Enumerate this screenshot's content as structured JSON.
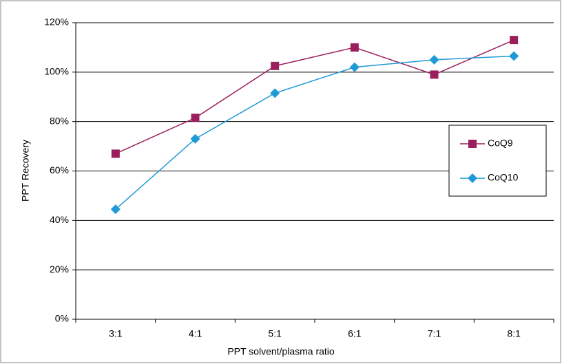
{
  "chart_data": {
    "type": "line",
    "x_label": "PPT solvent/plasma ratio",
    "y_label": "PPT Recovery",
    "categories": [
      "3:1",
      "4:1",
      "5:1",
      "6:1",
      "7:1",
      "8:1"
    ],
    "series": [
      {
        "name": "CoQ9",
        "color": "#9b1f5c",
        "marker": "square",
        "values": [
          67,
          81.5,
          102.5,
          110,
          99,
          113
        ]
      },
      {
        "name": "CoQ10",
        "color": "#1e9ad6",
        "marker": "diamond",
        "values": [
          44.5,
          73,
          91.5,
          102,
          105,
          106.5
        ]
      }
    ],
    "ylim": [
      0,
      120
    ],
    "yticks": [
      {
        "value": 0,
        "label": "0%"
      },
      {
        "value": 20,
        "label": "20%"
      },
      {
        "value": 40,
        "label": "40%"
      },
      {
        "value": 60,
        "label": "60%"
      },
      {
        "value": 80,
        "label": "80%"
      },
      {
        "value": 100,
        "label": "100%"
      },
      {
        "value": 120,
        "label": "120%"
      }
    ],
    "grid": true,
    "legend_position": "right"
  }
}
